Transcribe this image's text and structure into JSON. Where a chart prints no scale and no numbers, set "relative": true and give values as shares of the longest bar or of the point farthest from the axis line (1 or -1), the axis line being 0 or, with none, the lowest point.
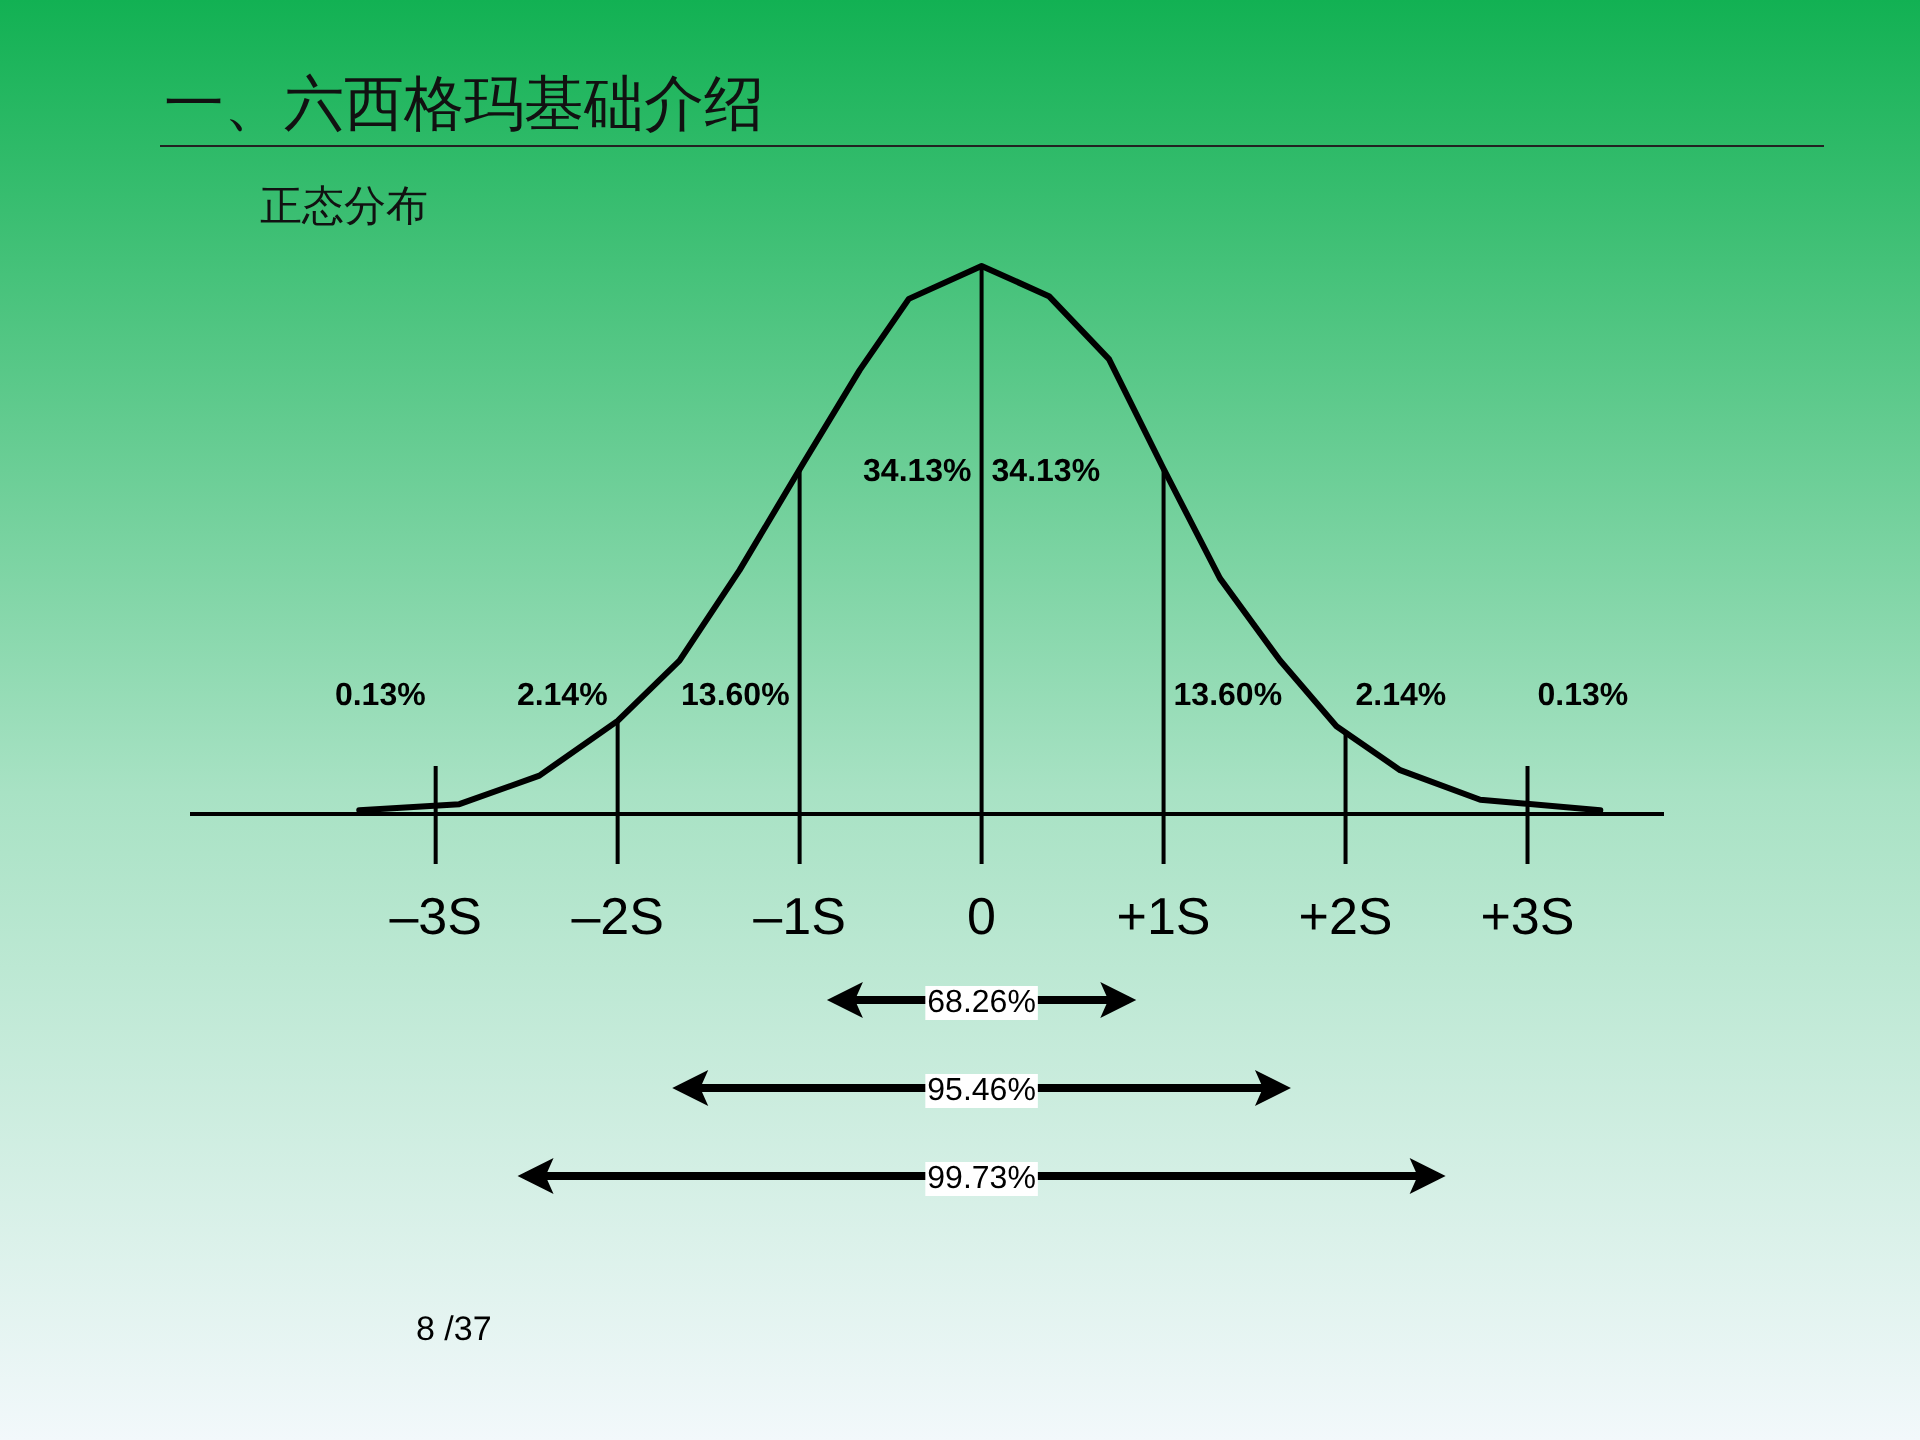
{
  "chart_data": {
    "type": "line",
    "title": "一、六西格玛基础介绍",
    "subtitle": "正态分布",
    "relative": true,
    "color": "#000000",
    "x": [
      -3.42,
      -2.87,
      -2.43,
      -2.0,
      -1.66,
      -1.33,
      -0.98,
      -0.67,
      -0.4,
      0,
      0.37,
      0.7,
      1.0,
      1.31,
      1.64,
      1.95,
      2.3,
      2.74,
      3.4
    ],
    "values": [
      0.007,
      0.018,
      0.07,
      0.17,
      0.28,
      0.445,
      0.64,
      0.81,
      0.94,
      1.0,
      0.945,
      0.83,
      0.63,
      0.43,
      0.28,
      0.16,
      0.08,
      0.026,
      0.007
    ],
    "xlim": [
      -4.35,
      3.75
    ],
    "xticks": [
      {
        "value": -3,
        "label": "–3S"
      },
      {
        "value": -2,
        "label": "–2S"
      },
      {
        "value": -1,
        "label": "–1S"
      },
      0,
      {
        "value": 1,
        "label": "+1S"
      },
      {
        "value": 2,
        "label": "+2S"
      },
      {
        "value": 3,
        "label": "+3S"
      }
    ],
    "ref_lines": [
      {
        "axis": "x",
        "value": -3
      },
      {
        "axis": "x",
        "value": -2
      },
      {
        "axis": "x",
        "value": -1
      },
      {
        "axis": "x",
        "value": 0
      },
      {
        "axis": "x",
        "value": 1
      },
      {
        "axis": "x",
        "value": 2
      },
      {
        "axis": "x",
        "value": 3
      }
    ],
    "annotations": [
      "0.13%",
      "2.14%",
      "13.60%",
      "34.13%",
      "34.13%",
      "13.60%",
      "2.14%",
      "0.13%",
      "68.26%",
      "95.46%",
      "99.73%",
      "8  /37"
    ]
  }
}
